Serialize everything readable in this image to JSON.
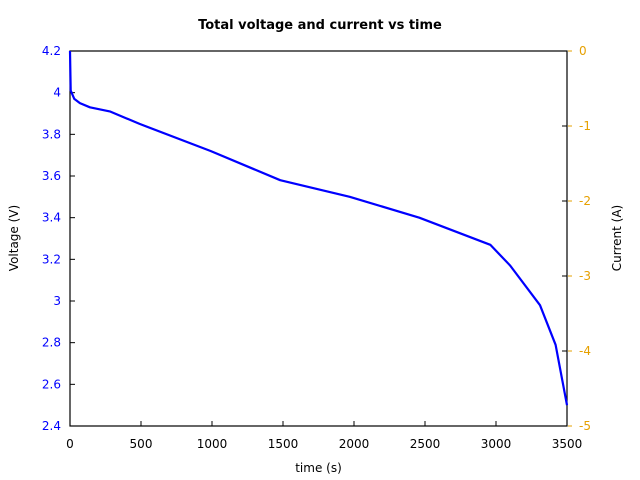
{
  "chart_data": {
    "type": "line",
    "title": "Total voltage and current vs time",
    "xlabel": "time (s)",
    "ylabel": "Voltage (V)",
    "y2label": "Current (A)",
    "xlim": [
      0,
      3500
    ],
    "ylim": [
      2.4,
      4.2
    ],
    "y2lim": [
      -5,
      0
    ],
    "xticks": [
      0,
      500,
      1000,
      1500,
      2000,
      2500,
      3000,
      3500
    ],
    "yticks": [
      2.4,
      2.6,
      2.8,
      3,
      3.2,
      3.4,
      3.6,
      3.8,
      4,
      4.2
    ],
    "y2ticks": [
      0,
      -1,
      -2,
      -3,
      -4,
      -5
    ],
    "grid": false,
    "colors": {
      "voltage": "#0000ff",
      "current_axis": "#e6a000",
      "axis": "#000000"
    },
    "series": [
      {
        "name": "Voltage",
        "axis": "left",
        "x": [
          0,
          5,
          30,
          70,
          140,
          280,
          490,
          990,
          1480,
          1970,
          2460,
          2960,
          3100,
          3310,
          3420,
          3500
        ],
        "values": [
          4.2,
          4.01,
          3.97,
          3.95,
          3.93,
          3.91,
          3.85,
          3.72,
          3.58,
          3.5,
          3.4,
          3.27,
          3.17,
          2.98,
          2.79,
          2.5
        ]
      }
    ]
  },
  "labels": {
    "title": "Total voltage and current vs time",
    "xlabel": "time (s)",
    "ylabel_left": "Voltage (V)",
    "ylabel_right": "Current (A)"
  }
}
